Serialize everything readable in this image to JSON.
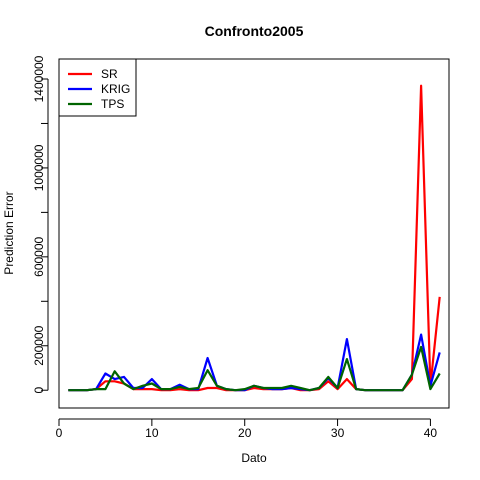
{
  "chart_data": {
    "type": "line",
    "title": "Confronto2005",
    "xlabel": "Dato",
    "ylabel": "Prediction Error",
    "xlim": [
      0,
      42
    ],
    "ylim": [
      -80000,
      1490000
    ],
    "x_ticks": [
      0,
      10,
      20,
      30,
      40
    ],
    "y_ticks": [
      0,
      200000,
      600000,
      1000000,
      1400000
    ],
    "grid": false,
    "legend_position": "top-left",
    "x": [
      1,
      2,
      3,
      4,
      5,
      6,
      7,
      8,
      9,
      10,
      11,
      12,
      13,
      14,
      15,
      16,
      17,
      18,
      19,
      20,
      21,
      22,
      23,
      24,
      25,
      26,
      27,
      28,
      29,
      30,
      31,
      32,
      33,
      34,
      35,
      36,
      37,
      38,
      39,
      40,
      41
    ],
    "series": [
      {
        "name": "SR",
        "color": "#ff0000",
        "values": [
          0,
          0,
          0,
          5000,
          40000,
          40000,
          30000,
          5000,
          5000,
          5000,
          0,
          0,
          5000,
          0,
          0,
          10000,
          10000,
          0,
          0,
          0,
          10000,
          5000,
          5000,
          5000,
          10000,
          0,
          0,
          5000,
          40000,
          5000,
          50000,
          5000,
          0,
          0,
          0,
          0,
          0,
          50000,
          1370000,
          20000,
          420000
        ]
      },
      {
        "name": "KRIG",
        "color": "#0000ff",
        "values": [
          0,
          0,
          0,
          5000,
          75000,
          50000,
          60000,
          10000,
          10000,
          50000,
          5000,
          5000,
          25000,
          5000,
          5000,
          145000,
          20000,
          5000,
          0,
          0,
          20000,
          10000,
          5000,
          5000,
          10000,
          5000,
          0,
          10000,
          55000,
          10000,
          230000,
          5000,
          0,
          0,
          0,
          0,
          0,
          70000,
          250000,
          20000,
          170000
        ]
      },
      {
        "name": "TPS",
        "color": "#006400",
        "values": [
          0,
          0,
          0,
          5000,
          5000,
          85000,
          30000,
          5000,
          20000,
          30000,
          5000,
          5000,
          15000,
          5000,
          10000,
          90000,
          20000,
          5000,
          0,
          5000,
          20000,
          10000,
          10000,
          10000,
          20000,
          10000,
          0,
          10000,
          60000,
          10000,
          140000,
          5000,
          0,
          0,
          0,
          0,
          0,
          70000,
          195000,
          5000,
          75000
        ]
      }
    ]
  }
}
